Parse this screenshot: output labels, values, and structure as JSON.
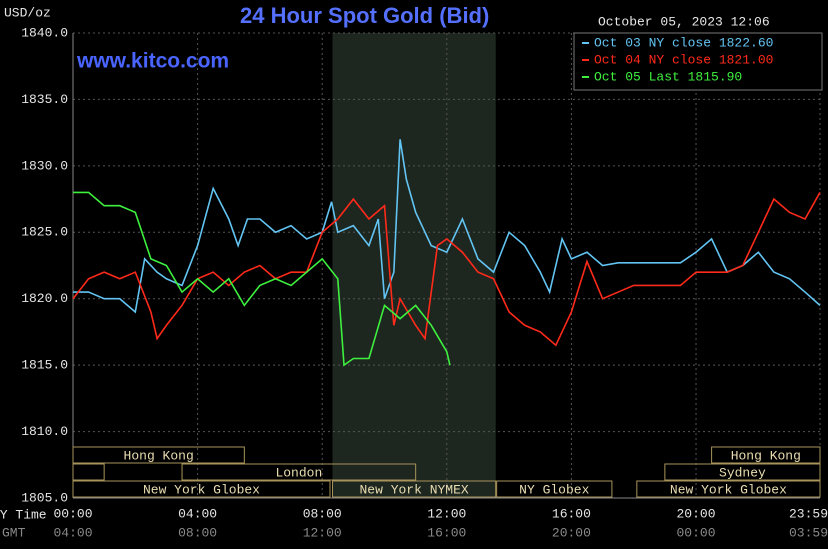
{
  "chart_data": {
    "type": "line",
    "title": "24 Hour Spot Gold (Bid)",
    "unit_label": "USD/oz",
    "timestamp": "October 05, 2023 12:06",
    "watermark": "www.kitco.com",
    "x_axis_label": "NY Time",
    "x2_axis_label": "GMT",
    "xlim": [
      0,
      23.98
    ],
    "xticks": [
      {
        "value": 0,
        "label": "00:00"
      },
      {
        "value": 4,
        "label": "04:00"
      },
      {
        "value": 8,
        "label": "08:00"
      },
      {
        "value": 12,
        "label": "12:00"
      },
      {
        "value": 16,
        "label": "16:00"
      },
      {
        "value": 20,
        "label": "20:00"
      },
      {
        "value": 23.98,
        "label": "23:59"
      }
    ],
    "x2ticks": [
      {
        "value": 0,
        "label": "04:00"
      },
      {
        "value": 4,
        "label": "08:00"
      },
      {
        "value": 8,
        "label": "12:00"
      },
      {
        "value": 12,
        "label": "16:00"
      },
      {
        "value": 16,
        "label": "20:00"
      },
      {
        "value": 20,
        "label": "00:00"
      },
      {
        "value": 23.98,
        "label": "03:59"
      }
    ],
    "ylim": [
      1805,
      1840
    ],
    "yticks": [
      {
        "value": 1805,
        "label": "1805.0"
      },
      {
        "value": 1810,
        "label": "1810.0"
      },
      {
        "value": 1815,
        "label": "1815.0"
      },
      {
        "value": 1820,
        "label": "1820.0"
      },
      {
        "value": 1825,
        "label": "1825.0"
      },
      {
        "value": 1830,
        "label": "1830.0"
      },
      {
        "value": 1835,
        "label": "1835.0"
      },
      {
        "value": 1840,
        "label": "1840.0"
      }
    ],
    "grid": true,
    "legend": "upper right",
    "series": [
      {
        "name": "Oct 03 NY close 1822.60",
        "color": "#62c4f2",
        "x": [
          0,
          0.5,
          1,
          1.5,
          2,
          2.3,
          2.7,
          3,
          3.5,
          4,
          4.5,
          5,
          5.3,
          5.6,
          6,
          6.5,
          7,
          7.5,
          8,
          8.3,
          8.5,
          9,
          9.5,
          9.8,
          10,
          10.3,
          10.5,
          10.7,
          11,
          11.5,
          12,
          12.5,
          13,
          13.5,
          14,
          14.5,
          15,
          15.3,
          15.7,
          16,
          16.5,
          17,
          17.5,
          18,
          18.5,
          19,
          19.5,
          20,
          20.5,
          21,
          21.5,
          22,
          22.5,
          23,
          23.5,
          23.98
        ],
        "values": [
          1820.5,
          1820.5,
          1820,
          1820,
          1819,
          1823,
          1822,
          1821.5,
          1821,
          1824,
          1828.3,
          1826,
          1824,
          1826,
          1826,
          1825,
          1825.5,
          1824.5,
          1825,
          1827.3,
          1825,
          1825.5,
          1824,
          1826,
          1820,
          1822,
          1832,
          1829,
          1826.5,
          1824,
          1823.5,
          1826,
          1823,
          1822,
          1825,
          1824,
          1822,
          1820.5,
          1824.5,
          1823,
          1823.5,
          1822.5,
          1822.7,
          1822.7,
          1822.7,
          1822.7,
          1822.7,
          1823.5,
          1824.5,
          1822,
          1822.5,
          1823.5,
          1822,
          1821.5,
          1820.5,
          1819.5
        ]
      },
      {
        "name": "Oct 04 NY close 1821.00",
        "color": "#ff2a1a",
        "x": [
          0,
          0.5,
          1,
          1.5,
          2,
          2.5,
          2.7,
          3,
          3.5,
          4,
          4.5,
          5,
          5.5,
          6,
          6.5,
          7,
          7.5,
          8,
          8.5,
          9,
          9.5,
          10,
          10.3,
          10.5,
          11,
          11.3,
          11.7,
          12,
          12.5,
          13,
          13.5,
          14,
          14.5,
          15,
          15.5,
          16,
          16.5,
          17,
          17.5,
          18,
          19,
          19.5,
          20,
          21,
          21.5,
          22,
          22.5,
          23,
          23.5,
          23.98
        ],
        "values": [
          1820,
          1821.5,
          1822,
          1821.5,
          1822,
          1819,
          1817,
          1818,
          1819.5,
          1821.5,
          1822,
          1821,
          1822,
          1822.5,
          1821.5,
          1822,
          1822,
          1825,
          1826,
          1827.5,
          1826,
          1827,
          1818,
          1820,
          1818,
          1817,
          1824,
          1824.5,
          1823.5,
          1822,
          1821.5,
          1819,
          1818,
          1817.5,
          1816.5,
          1819,
          1822.8,
          1820,
          1820.5,
          1821,
          1821,
          1821,
          1822,
          1822,
          1822.5,
          1825,
          1827.5,
          1826.5,
          1826,
          1828
        ]
      },
      {
        "name": "Oct 05 Last 1815.90",
        "color": "#3ef03e",
        "x": [
          0,
          0.5,
          1,
          1.5,
          2,
          2.5,
          3,
          3.5,
          4,
          4.5,
          5,
          5.5,
          6,
          6.5,
          7,
          7.5,
          8,
          8.5,
          8.7,
          9,
          9.5,
          10,
          10.5,
          11,
          11.5,
          12,
          12.1
        ],
        "values": [
          1828,
          1828,
          1827,
          1827,
          1826.5,
          1823,
          1822.5,
          1820.5,
          1821.5,
          1820.5,
          1821.5,
          1819.5,
          1821,
          1821.5,
          1821,
          1822,
          1823,
          1821.5,
          1815,
          1815.5,
          1815.5,
          1819.5,
          1818.5,
          1819.5,
          1818,
          1816,
          1815
        ]
      }
    ],
    "sessions": [
      {
        "label": "Hong Kong",
        "start": 0,
        "end": 5.5,
        "row": 0
      },
      {
        "label": "Hong Kong",
        "start": 20.5,
        "end": 23.98,
        "row": 0
      },
      {
        "label": null,
        "start": 0,
        "end": 1,
        "row": 1
      },
      {
        "label": "London",
        "start": 3.5,
        "end": 11,
        "row": 1
      },
      {
        "label": "Sydney",
        "start": 19,
        "end": 23.98,
        "row": 1
      },
      {
        "label": "New York Globex",
        "start": 0,
        "end": 8.25,
        "row": 2
      },
      {
        "label": "New York NYMEX",
        "start": 8.33,
        "end": 13.57,
        "row": 2,
        "shaded": true
      },
      {
        "label": "NY Globex",
        "start": 13.6,
        "end": 17.3,
        "row": 2
      },
      {
        "label": "New York Globex",
        "start": 18.1,
        "end": 23.98,
        "row": 2
      }
    ]
  }
}
